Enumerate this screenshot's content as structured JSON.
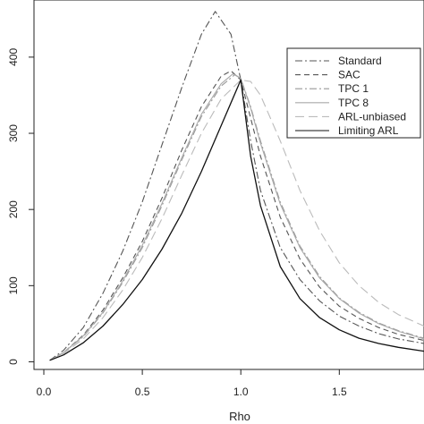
{
  "chart_data": {
    "type": "line",
    "xlabel": "Rho",
    "ylabel": "",
    "xlim": [
      -0.05,
      1.93
    ],
    "ylim": [
      -10,
      475
    ],
    "xticks": [
      "0.0",
      "0.5",
      "1.0",
      "1.5"
    ],
    "yticks": [
      "0",
      "100",
      "200",
      "300",
      "400"
    ],
    "legend_position": "top-right",
    "grid": false,
    "series": [
      {
        "name": "Standard",
        "line_style": "dotdash",
        "color": "#555555",
        "x": [
          0.03,
          0.1,
          0.2,
          0.3,
          0.4,
          0.5,
          0.6,
          0.7,
          0.8,
          0.87,
          0.95,
          1.0,
          1.05,
          1.1,
          1.2,
          1.3,
          1.4,
          1.5,
          1.6,
          1.7,
          1.8,
          1.93
        ],
        "y": [
          2,
          15,
          45,
          90,
          145,
          210,
          285,
          360,
          430,
          460,
          430,
          370,
          290,
          225,
          150,
          108,
          80,
          60,
          47,
          37,
          30,
          24
        ]
      },
      {
        "name": "SAC",
        "line_style": "dashed",
        "color": "#555555",
        "x": [
          0.03,
          0.1,
          0.2,
          0.3,
          0.4,
          0.5,
          0.6,
          0.7,
          0.8,
          0.9,
          0.95,
          1.0,
          1.05,
          1.1,
          1.2,
          1.3,
          1.4,
          1.5,
          1.6,
          1.7,
          1.8,
          1.93
        ],
        "y": [
          2,
          12,
          35,
          68,
          110,
          158,
          215,
          278,
          335,
          375,
          382,
          370,
          320,
          270,
          190,
          135,
          98,
          73,
          57,
          45,
          36,
          28
        ]
      },
      {
        "name": "TPC 1",
        "line_style": "dotdash",
        "color": "#999999",
        "x": [
          0.03,
          0.1,
          0.2,
          0.3,
          0.4,
          0.5,
          0.6,
          0.7,
          0.8,
          0.9,
          0.97,
          1.0,
          1.05,
          1.1,
          1.2,
          1.3,
          1.4,
          1.5,
          1.6,
          1.7,
          1.8,
          1.93
        ],
        "y": [
          2,
          12,
          33,
          64,
          104,
          150,
          205,
          265,
          322,
          362,
          377,
          372,
          335,
          290,
          210,
          152,
          112,
          84,
          65,
          51,
          41,
          31
        ]
      },
      {
        "name": "TPC 8",
        "line_style": "solid",
        "color": "#aaaaaa",
        "x": [
          0.03,
          0.1,
          0.2,
          0.3,
          0.4,
          0.5,
          0.6,
          0.7,
          0.8,
          0.9,
          0.96,
          1.0,
          1.05,
          1.1,
          1.2,
          1.3,
          1.4,
          1.5,
          1.6,
          1.7,
          1.8,
          1.93
        ],
        "y": [
          2,
          12,
          34,
          65,
          106,
          153,
          208,
          268,
          325,
          365,
          378,
          372,
          333,
          287,
          207,
          150,
          110,
          83,
          64,
          50,
          40,
          30
        ]
      },
      {
        "name": "ARL-unbiased",
        "line_style": "longdash",
        "color": "#bbbbbb",
        "x": [
          0.03,
          0.1,
          0.2,
          0.3,
          0.4,
          0.5,
          0.6,
          0.7,
          0.8,
          0.9,
          1.0,
          1.05,
          1.1,
          1.2,
          1.3,
          1.4,
          1.5,
          1.6,
          1.7,
          1.8,
          1.93
        ],
        "y": [
          2,
          11,
          30,
          58,
          94,
          137,
          188,
          245,
          300,
          345,
          370,
          368,
          350,
          290,
          225,
          172,
          130,
          100,
          78,
          62,
          47
        ]
      },
      {
        "name": "Limiting ARL",
        "line_style": "solid",
        "color": "#111111",
        "x": [
          0.03,
          0.1,
          0.2,
          0.3,
          0.4,
          0.5,
          0.6,
          0.7,
          0.8,
          0.9,
          1.0,
          1.05,
          1.1,
          1.2,
          1.3,
          1.4,
          1.5,
          1.6,
          1.7,
          1.8,
          1.93
        ],
        "y": [
          2,
          9,
          25,
          47,
          75,
          108,
          148,
          195,
          250,
          310,
          370,
          270,
          205,
          125,
          83,
          58,
          42,
          31,
          24,
          19,
          14
        ]
      }
    ]
  }
}
